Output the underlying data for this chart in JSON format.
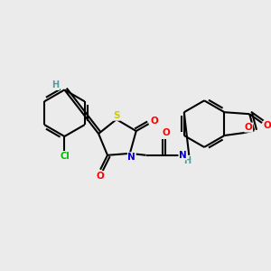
{
  "background_color": "#ebebeb",
  "bond_color": "#000000",
  "atom_colors": {
    "O": "#ff0000",
    "N": "#0000cd",
    "S": "#cccc00",
    "Cl": "#00bb00",
    "H": "#559999",
    "C": "#000000"
  },
  "figsize": [
    3.0,
    3.0
  ],
  "dpi": 100
}
